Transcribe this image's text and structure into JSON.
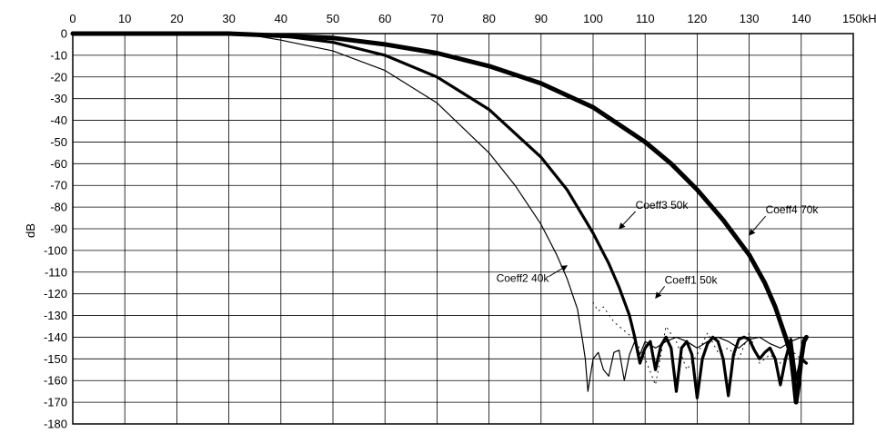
{
  "chart_data": {
    "type": "line",
    "x_unit": "kHz",
    "ylabel": "dB",
    "xlim": [
      0,
      150
    ],
    "ylim": [
      -180,
      0
    ],
    "grid": true,
    "x_axis_position": "top",
    "x_ticks": [
      "0",
      "10",
      "20",
      "30",
      "40",
      "50",
      "60",
      "70",
      "80",
      "90",
      "100",
      "110",
      "120",
      "130",
      "140",
      "150kHz"
    ],
    "y_ticks": [
      "0",
      "-10",
      "-20",
      "-30",
      "-40",
      "-50",
      "-60",
      "-70",
      "-80",
      "-90",
      "-100",
      "-110",
      "-120",
      "-130",
      "-140",
      "-150",
      "-160",
      "-170",
      "-180"
    ],
    "series": [
      {
        "name": "Coeff2 40k",
        "weight": "thin",
        "x": [
          0,
          30,
          35,
          40,
          50,
          60,
          70,
          80,
          85,
          90,
          93,
          95,
          97,
          98,
          98.5,
          99,
          100,
          101,
          102,
          103,
          104,
          105,
          106,
          107,
          108,
          109,
          110,
          112,
          114,
          116,
          118,
          120,
          122,
          124,
          126,
          128,
          130,
          132,
          134,
          136,
          138,
          140,
          141
        ],
        "y": [
          0,
          0,
          -1,
          -3,
          -8,
          -17,
          -32,
          -55,
          -70,
          -88,
          -102,
          -113,
          -127,
          -142,
          -150,
          -165,
          -150,
          -147,
          -155,
          -158,
          -147,
          -146,
          -160,
          -148,
          -142,
          -148,
          -142,
          -145,
          -142,
          -140,
          -142,
          -145,
          -142,
          -140,
          -142,
          -145,
          -141,
          -140,
          -143,
          -145,
          -142,
          -140,
          -141
        ]
      },
      {
        "name": "Coeff3 50k",
        "weight": "medium",
        "x": [
          0,
          30,
          40,
          50,
          60,
          70,
          80,
          90,
          95,
          100,
          103,
          105,
          107,
          108,
          108.5,
          109,
          110,
          111,
          112,
          113,
          114,
          115,
          116,
          117,
          118,
          119,
          120,
          121,
          122,
          123,
          124,
          125,
          126,
          127,
          128,
          129,
          130,
          131,
          132,
          133,
          134,
          135,
          136,
          137,
          138,
          139,
          140,
          141
        ],
        "y": [
          0,
          0,
          -1,
          -4,
          -10,
          -20,
          -35,
          -57,
          -72,
          -92,
          -106,
          -117,
          -130,
          -140,
          -146,
          -152,
          -145,
          -142,
          -155,
          -144,
          -140,
          -145,
          -165,
          -145,
          -142,
          -148,
          -168,
          -150,
          -143,
          -140,
          -142,
          -150,
          -167,
          -148,
          -141,
          -140,
          -141,
          -146,
          -150,
          -147,
          -145,
          -150,
          -162,
          -150,
          -141,
          -160,
          -150,
          -152
        ]
      },
      {
        "name": "Coeff4 70k",
        "weight": "thick",
        "x": [
          0,
          30,
          40,
          50,
          60,
          70,
          80,
          90,
          100,
          110,
          115,
          120,
          125,
          130,
          133,
          135,
          137,
          138,
          138.5,
          139,
          139.5,
          140,
          140.5,
          141
        ],
        "y": [
          0,
          0,
          -1,
          -2,
          -5,
          -9,
          -15,
          -23,
          -34,
          -50,
          -60,
          -72,
          -86,
          -102,
          -115,
          -126,
          -140,
          -148,
          -158,
          -170,
          -162,
          -150,
          -142,
          -140
        ]
      },
      {
        "name": "Coeff1 50k",
        "weight": "dotted",
        "x": [
          100,
          101,
          102,
          104,
          106,
          108,
          110,
          112,
          114,
          116,
          118,
          120,
          122,
          124,
          126,
          128,
          130,
          132,
          134,
          136,
          138,
          140
        ],
        "y": [
          -124,
          -128,
          -126,
          -133,
          -137,
          -141,
          -150,
          -162,
          -135,
          -142,
          -155,
          -148,
          -138,
          -147,
          -145,
          -150,
          -138,
          -152,
          -148,
          -152,
          -146,
          -150
        ]
      }
    ],
    "annotations": [
      {
        "text": "Coeff3 50k",
        "target_x": 105,
        "target_y": -90
      },
      {
        "text": "Coeff4 70k",
        "target_x": 130,
        "target_y": -93
      },
      {
        "text": "Coeff1 50k",
        "target_x": 112,
        "target_y": -122
      },
      {
        "text": "Coeff2 40k",
        "target_x": 95,
        "target_y": -107
      }
    ]
  }
}
